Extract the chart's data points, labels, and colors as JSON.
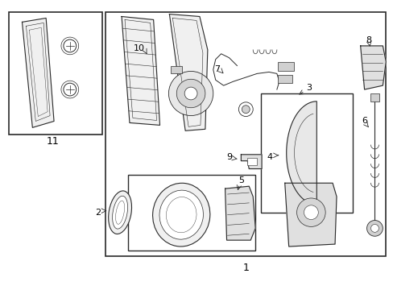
{
  "background_color": "#ffffff",
  "line_color": "#2a2a2a",
  "fig_width": 4.89,
  "fig_height": 3.6,
  "font_size": 8
}
